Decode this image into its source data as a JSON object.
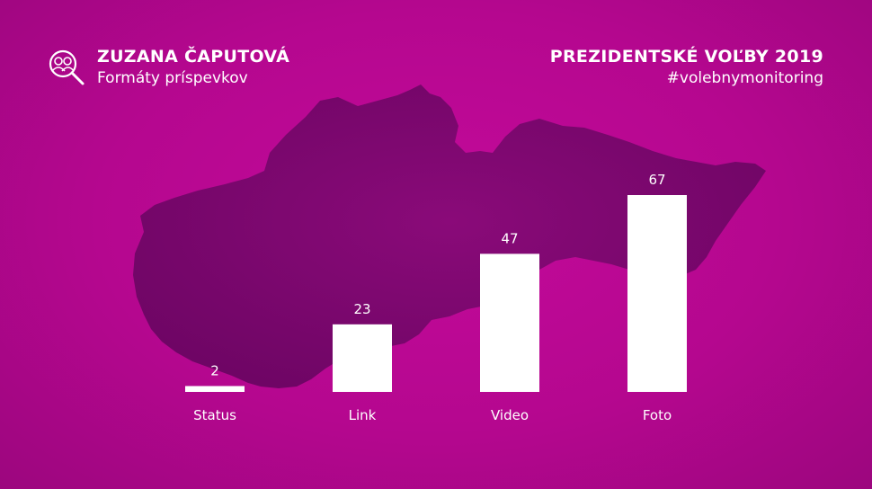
{
  "header": {
    "name": "ZUZANA ČAPUTOVÁ",
    "subtitle": "Formáty príspevkov",
    "title": "PREZIDENTSKÉ VOĽBY 2019",
    "hashtag": "#volebnymonitoring"
  },
  "colors": {
    "background": "#b5078f",
    "map": "#7e0670",
    "bar": "#ffffff"
  },
  "logo_icon": "magnifier-people-icon",
  "chart_data": {
    "type": "bar",
    "title": "",
    "xlabel": "",
    "ylabel": "",
    "categories": [
      "Status",
      "Link",
      "Video",
      "Foto"
    ],
    "values": [
      2,
      23,
      47,
      67
    ],
    "ylim": [
      0,
      67
    ],
    "grid": false,
    "legend": "none"
  }
}
